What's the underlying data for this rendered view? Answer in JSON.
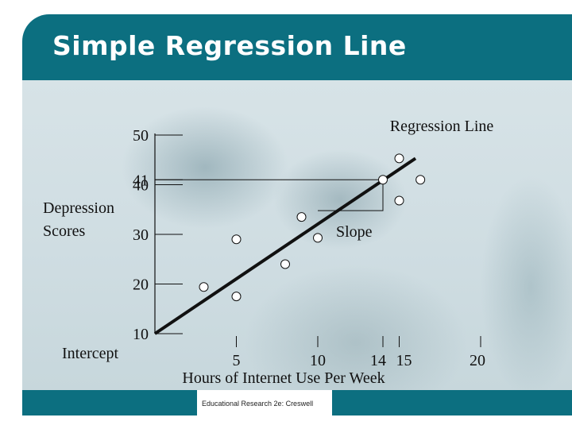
{
  "slide": {
    "title": "Simple Regression Line",
    "footer": "Educational Research 2e:  Creswell",
    "colors": {
      "title_bar": "#0c6f80",
      "title_text": "#ffffff"
    }
  },
  "chart_data": {
    "type": "scatter",
    "title": "",
    "xlabel": "Hours of Internet Use Per Week",
    "ylabel_lines": [
      "Depression",
      "Scores"
    ],
    "x_ticks": [
      {
        "value": 5,
        "label": "5"
      },
      {
        "value": 10,
        "label": "10"
      },
      {
        "value": 14,
        "label": "14"
      },
      {
        "value": 15,
        "label": "15"
      },
      {
        "value": 20,
        "label": "20"
      }
    ],
    "y_ticks": [
      {
        "value": 10,
        "label": "10"
      },
      {
        "value": 20,
        "label": "20"
      },
      {
        "value": 30,
        "label": "30"
      },
      {
        "value": 40,
        "label": "40"
      },
      {
        "value": 41,
        "label": "41"
      },
      {
        "value": 50,
        "label": "50"
      }
    ],
    "xlim": [
      0,
      20
    ],
    "ylim": [
      10,
      50
    ],
    "points": [
      {
        "x": 3,
        "y": 19.4
      },
      {
        "x": 5,
        "y": 17.5
      },
      {
        "x": 5,
        "y": 29
      },
      {
        "x": 8,
        "y": 24
      },
      {
        "x": 9,
        "y": 33.5
      },
      {
        "x": 10,
        "y": 29.3
      },
      {
        "x": 14,
        "y": 41
      },
      {
        "x": 15,
        "y": 36.8
      },
      {
        "x": 15,
        "y": 45.3
      },
      {
        "x": 16.3,
        "y": 41
      }
    ],
    "regression_line": {
      "x_start": 0,
      "y_start": 10,
      "x_end": 16,
      "y_end": 45.3
    },
    "slope_triangle": {
      "x_start": 10,
      "x_end": 14,
      "y_low": 33.5,
      "y_high": 41
    },
    "annotations": {
      "regression_line": "Regression Line",
      "slope": "Slope",
      "intercept": "Intercept"
    }
  }
}
